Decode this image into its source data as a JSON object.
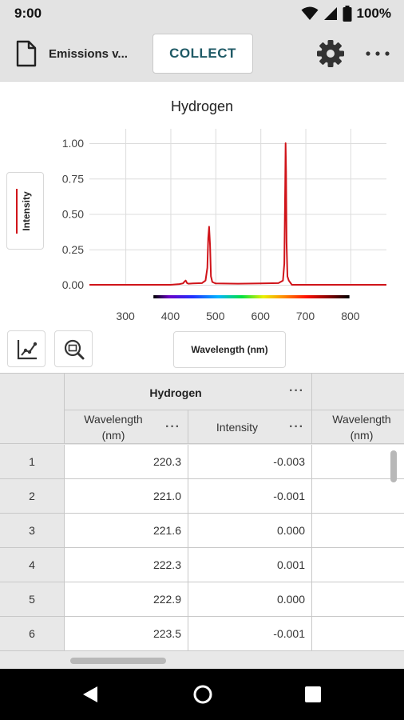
{
  "status_bar": {
    "time": "9:00",
    "battery": "100%"
  },
  "toolbar": {
    "file_name": "Emissions v...",
    "collect_label": "COLLECT"
  },
  "graph": {
    "y_axis_button_label": "Intensity",
    "x_axis_button_label": "Wavelength (nm)"
  },
  "chart_data": {
    "type": "line",
    "title": "Hydrogen",
    "xlabel": "Wavelength (nm)",
    "ylabel": "Intensity",
    "xlim": [
      220,
      880
    ],
    "ylim": [
      0,
      1.0
    ],
    "x_ticks": [
      300,
      400,
      500,
      600,
      700,
      800
    ],
    "x_tick_labels": [
      "300",
      "400",
      "500",
      "600",
      "700",
      "800"
    ],
    "y_ticks": [
      0,
      0.25,
      0.5,
      0.75,
      1.0
    ],
    "y_tick_labels": [
      "0.00",
      "0.25",
      "0.50",
      "0.75",
      "1.00"
    ],
    "grid": true,
    "spectrum_band": [
      380,
      780
    ],
    "series": [
      {
        "name": "Intensity",
        "color": "#d0141a",
        "x": [
          220,
          380,
          400,
          420,
          428,
          432,
          434,
          437,
          440,
          450,
          470,
          478,
          482,
          484,
          486,
          488,
          490,
          493,
          500,
          550,
          600,
          640,
          650,
          653,
          655,
          656,
          657,
          658,
          660,
          663,
          670,
          700,
          750,
          800,
          880
        ],
        "y": [
          0.0,
          0.0,
          0.0,
          0.005,
          0.01,
          0.025,
          0.03,
          0.012,
          0.008,
          0.01,
          0.012,
          0.03,
          0.12,
          0.33,
          0.41,
          0.28,
          0.06,
          0.02,
          0.01,
          0.008,
          0.01,
          0.012,
          0.03,
          0.15,
          0.7,
          1.0,
          0.8,
          0.3,
          0.06,
          0.03,
          0.0,
          0.0,
          0.0,
          0.0,
          0.0
        ]
      }
    ]
  },
  "table": {
    "data_set": "Hydrogen",
    "columns": [
      {
        "label_line1": "Wavelength",
        "label_line2": "(nm)"
      },
      {
        "label_line1": "Intensity",
        "label_line2": ""
      },
      {
        "label_line1": "Wavelength",
        "label_line2": "(nm)"
      }
    ],
    "rows": [
      {
        "num": "1",
        "wavelength": "220.3",
        "intensity": "-0.003"
      },
      {
        "num": "2",
        "wavelength": "221.0",
        "intensity": "-0.001"
      },
      {
        "num": "3",
        "wavelength": "221.6",
        "intensity": "0.000"
      },
      {
        "num": "4",
        "wavelength": "222.3",
        "intensity": "0.001"
      },
      {
        "num": "5",
        "wavelength": "222.9",
        "intensity": "0.000"
      },
      {
        "num": "6",
        "wavelength": "223.5",
        "intensity": "-0.001"
      }
    ]
  }
}
